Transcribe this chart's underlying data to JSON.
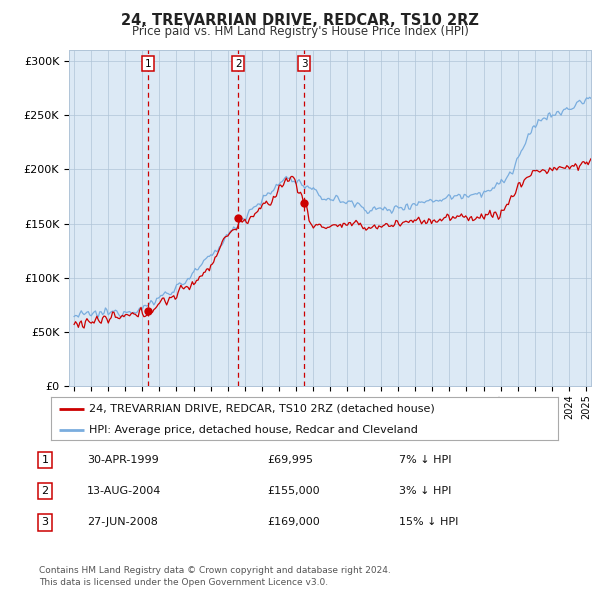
{
  "title": "24, TREVARRIAN DRIVE, REDCAR, TS10 2RZ",
  "subtitle": "Price paid vs. HM Land Registry's House Price Index (HPI)",
  "ylabel_ticks": [
    "£0",
    "£50K",
    "£100K",
    "£150K",
    "£200K",
    "£250K",
    "£300K"
  ],
  "ytick_values": [
    0,
    50000,
    100000,
    150000,
    200000,
    250000,
    300000
  ],
  "ylim": [
    0,
    310000
  ],
  "sales": [
    {
      "date_num": 1999.33,
      "price": 69995,
      "label": "1"
    },
    {
      "date_num": 2004.62,
      "price": 155000,
      "label": "2"
    },
    {
      "date_num": 2008.49,
      "price": 169000,
      "label": "3"
    }
  ],
  "sale_vline_color": "#cc0000",
  "sale_marker_color": "#cc0000",
  "hpi_line_color": "#7aadde",
  "price_line_color": "#cc0000",
  "chart_bg_color": "#dce9f5",
  "legend_items": [
    {
      "label": "24, TREVARRIAN DRIVE, REDCAR, TS10 2RZ (detached house)",
      "color": "#cc0000"
    },
    {
      "label": "HPI: Average price, detached house, Redcar and Cleveland",
      "color": "#7aadde"
    }
  ],
  "table_rows": [
    {
      "num": "1",
      "date": "30-APR-1999",
      "price": "£69,995",
      "hpi": "7% ↓ HPI"
    },
    {
      "num": "2",
      "date": "13-AUG-2004",
      "price": "£155,000",
      "hpi": "3% ↓ HPI"
    },
    {
      "num": "3",
      "date": "27-JUN-2008",
      "price": "£169,000",
      "hpi": "15% ↓ HPI"
    }
  ],
  "footnote": "Contains HM Land Registry data © Crown copyright and database right 2024.\nThis data is licensed under the Open Government Licence v3.0.",
  "background_color": "#ffffff",
  "grid_color": "#b0c4d8",
  "xlim_start": 1994.7,
  "xlim_end": 2025.3
}
